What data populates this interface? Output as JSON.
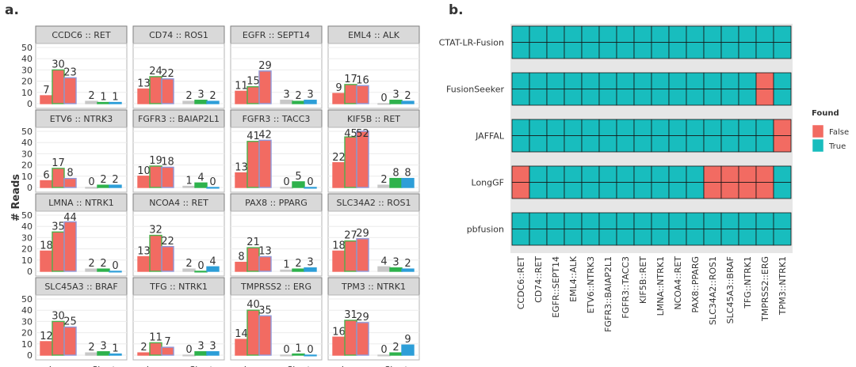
{
  "chart_data": [
    {
      "type": "bar",
      "panel_label": "a.",
      "ylabel": "# Reads",
      "ylim": [
        0,
        50
      ],
      "yticks": [
        "0",
        "10",
        "20",
        "30",
        "40",
        "50"
      ],
      "categories": [
        "Long",
        "Short"
      ],
      "bar_colors": [
        "#F26B62",
        "#F26B62",
        "#F26B62",
        "#C8C8C8",
        "#2EB24C",
        "#2D9ED8"
      ],
      "bar_edges": [
        "#F26B62",
        "#4CB04C",
        "#8F97D8",
        "#C8C8C8",
        "#2EB24C",
        "#2D9ED8"
      ],
      "facets": [
        {
          "title": "CCDC6 :: RET",
          "values": [
            [
              7,
              30,
              23
            ],
            [
              2,
              1,
              1
            ]
          ],
          "labels": [
            "7",
            "30",
            "23",
            "2",
            "1",
            "1"
          ]
        },
        {
          "title": "CD74 :: ROS1",
          "values": [
            [
              13,
              24,
              22
            ],
            [
              2,
              3,
              2
            ]
          ],
          "labels": [
            "13",
            "24",
            "22",
            "2",
            "3",
            "2"
          ]
        },
        {
          "title": "EGFR :: SEPT14",
          "values": [
            [
              11,
              15,
              29
            ],
            [
              3,
              2,
              3
            ]
          ],
          "labels": [
            "11",
            "15",
            "29",
            "3",
            "2",
            "3"
          ]
        },
        {
          "title": "EML4 :: ALK",
          "values": [
            [
              9,
              17,
              16
            ],
            [
              0,
              3,
              2
            ]
          ],
          "labels": [
            "9",
            "17",
            "16",
            "0",
            "3",
            "2"
          ]
        },
        {
          "title": "ETV6 :: NTRK3",
          "values": [
            [
              6,
              17,
              8
            ],
            [
              0,
              2,
              2
            ]
          ],
          "labels": [
            "6",
            "17",
            "8",
            "0",
            "2",
            "2"
          ]
        },
        {
          "title": "FGFR3 :: BAIAP2L1",
          "values": [
            [
              10,
              19,
              18
            ],
            [
              1,
              4,
              0
            ]
          ],
          "labels": [
            "10",
            "19",
            "18",
            "1",
            "4",
            "0"
          ]
        },
        {
          "title": "FGFR3 :: TACC3",
          "values": [
            [
              13,
              41,
              42
            ],
            [
              0,
              5,
              0
            ]
          ],
          "labels": [
            "13",
            "41",
            "42",
            "0",
            "5",
            "0"
          ]
        },
        {
          "title": "KIF5B :: RET",
          "values": [
            [
              22,
              45,
              52
            ],
            [
              2,
              8,
              8
            ]
          ],
          "labels": [
            "22",
            "45",
            "52",
            "2",
            "8",
            "8"
          ]
        },
        {
          "title": "LMNA :: NTRK1",
          "values": [
            [
              18,
              35,
              44
            ],
            [
              2,
              2,
              0
            ]
          ],
          "labels": [
            "18",
            "35",
            "44",
            "2",
            "2",
            "0"
          ]
        },
        {
          "title": "NCOA4 :: RET",
          "values": [
            [
              13,
              32,
              22
            ],
            [
              2,
              0,
              4
            ]
          ],
          "labels": [
            "13",
            "32",
            "22",
            "2",
            "0",
            "4"
          ]
        },
        {
          "title": "PAX8 :: PPARG",
          "values": [
            [
              8,
              21,
              13
            ],
            [
              1,
              2,
              3
            ]
          ],
          "labels": [
            "8",
            "21",
            "13",
            "1",
            "2",
            "3"
          ]
        },
        {
          "title": "SLC34A2 :: ROS1",
          "values": [
            [
              18,
              27,
              29
            ],
            [
              4,
              3,
              2
            ]
          ],
          "labels": [
            "18",
            "27",
            "29",
            "4",
            "3",
            "2"
          ]
        },
        {
          "title": "SLC45A3 :: BRAF",
          "values": [
            [
              12,
              30,
              25
            ],
            [
              2,
              3,
              1
            ]
          ],
          "labels": [
            "12",
            "30",
            "25",
            "2",
            "3",
            "1"
          ]
        },
        {
          "title": "TFG :: NTRK1",
          "values": [
            [
              2,
              11,
              7
            ],
            [
              0,
              3,
              3
            ]
          ],
          "labels": [
            "2",
            "11",
            "7",
            "0",
            "3",
            "3"
          ]
        },
        {
          "title": "TMPRSS2 :: ERG",
          "values": [
            [
              14,
              40,
              35
            ],
            [
              0,
              1,
              0
            ]
          ],
          "labels": [
            "14",
            "40",
            "35",
            "0",
            "1",
            "0"
          ]
        },
        {
          "title": "TPM3 :: NTRK1",
          "values": [
            [
              16,
              31,
              29
            ],
            [
              0,
              2,
              9
            ]
          ],
          "labels": [
            "16",
            "31",
            "29",
            "0",
            "2",
            "9"
          ]
        }
      ]
    },
    {
      "type": "heatmap",
      "panel_label": "b.",
      "rows": [
        "CTAT-LR-Fusion",
        "FusionSeeker",
        "JAFFAL",
        "LongGF",
        "pbfusion"
      ],
      "columns": [
        "CCDC6::RET",
        "CD74::RET",
        "EGFR::SEPT14",
        "EML4::ALK",
        "ETV6::NTRK3",
        "FGFR3::BAIAP2L1",
        "FGFR3::TACC3",
        "KIF5B::RET",
        "LMNA::NTRK1",
        "NCOA4::RET",
        "PAX8::PPARG",
        "SLC34A2::ROS1",
        "SLC45A3::BRAF",
        "TFG::NTRK1",
        "TMPRSS2::ERG",
        "TPM3::NTRK1"
      ],
      "found": [
        [
          1,
          1,
          1,
          1,
          1,
          1,
          1,
          1,
          1,
          1,
          1,
          1,
          1,
          1,
          1,
          1
        ],
        [
          1,
          1,
          1,
          1,
          1,
          1,
          1,
          1,
          1,
          1,
          1,
          1,
          1,
          1,
          0,
          1
        ],
        [
          1,
          1,
          1,
          1,
          1,
          1,
          1,
          1,
          1,
          1,
          1,
          1,
          1,
          1,
          1,
          0
        ],
        [
          0,
          1,
          1,
          1,
          1,
          1,
          1,
          1,
          1,
          1,
          1,
          0,
          0,
          0,
          0,
          1
        ],
        [
          1,
          1,
          1,
          1,
          1,
          1,
          1,
          1,
          1,
          1,
          1,
          1,
          1,
          1,
          1,
          1
        ]
      ],
      "legend": {
        "title": "Found",
        "items": [
          {
            "label": "False",
            "color": "#F26B62"
          },
          {
            "label": "True",
            "color": "#18BDBE"
          }
        ],
        "position": "right"
      }
    }
  ]
}
